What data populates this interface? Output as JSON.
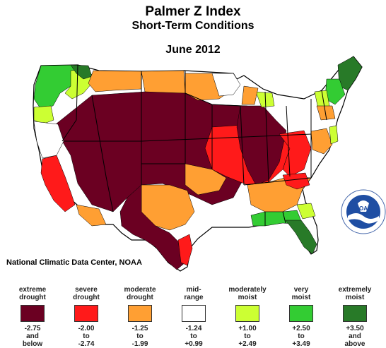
{
  "title": "Palmer Z Index",
  "subtitle": "Short-Term Conditions",
  "period": "June 2012",
  "credit": "National Climatic Data Center, NOAA",
  "logo_text": "NOAA",
  "colors": {
    "extreme_drought": "#6b0022",
    "severe_drought": "#ff1a1a",
    "moderate_drought": "#ff9f33",
    "mid_range": "#ffffff",
    "moderately_moist": "#ccff33",
    "very_moist": "#33cc33",
    "extremely_moist": "#287a28"
  },
  "legend": [
    {
      "label": "extreme\ndrought",
      "range": "-2.75\nand\nbelow",
      "color": "#6b0022"
    },
    {
      "label": "severe\ndrought",
      "range": "-2.00\nto\n-2.74",
      "color": "#ff1a1a"
    },
    {
      "label": "moderate\ndrought",
      "range": "-1.25\nto\n-1.99",
      "color": "#ff9f33"
    },
    {
      "label": "mid-\nrange",
      "range": "-1.24\nto\n+0.99",
      "color": "#ffffff"
    },
    {
      "label": "moderately\nmoist",
      "range": "+1.00\nto\n+2.49",
      "color": "#ccff33"
    },
    {
      "label": "very\nmoist",
      "range": "+2.50\nto\n+3.49",
      "color": "#33cc33"
    },
    {
      "label": "extremely\nmoist",
      "range": "+3.50\nand\nabove",
      "color": "#287a28"
    }
  ]
}
